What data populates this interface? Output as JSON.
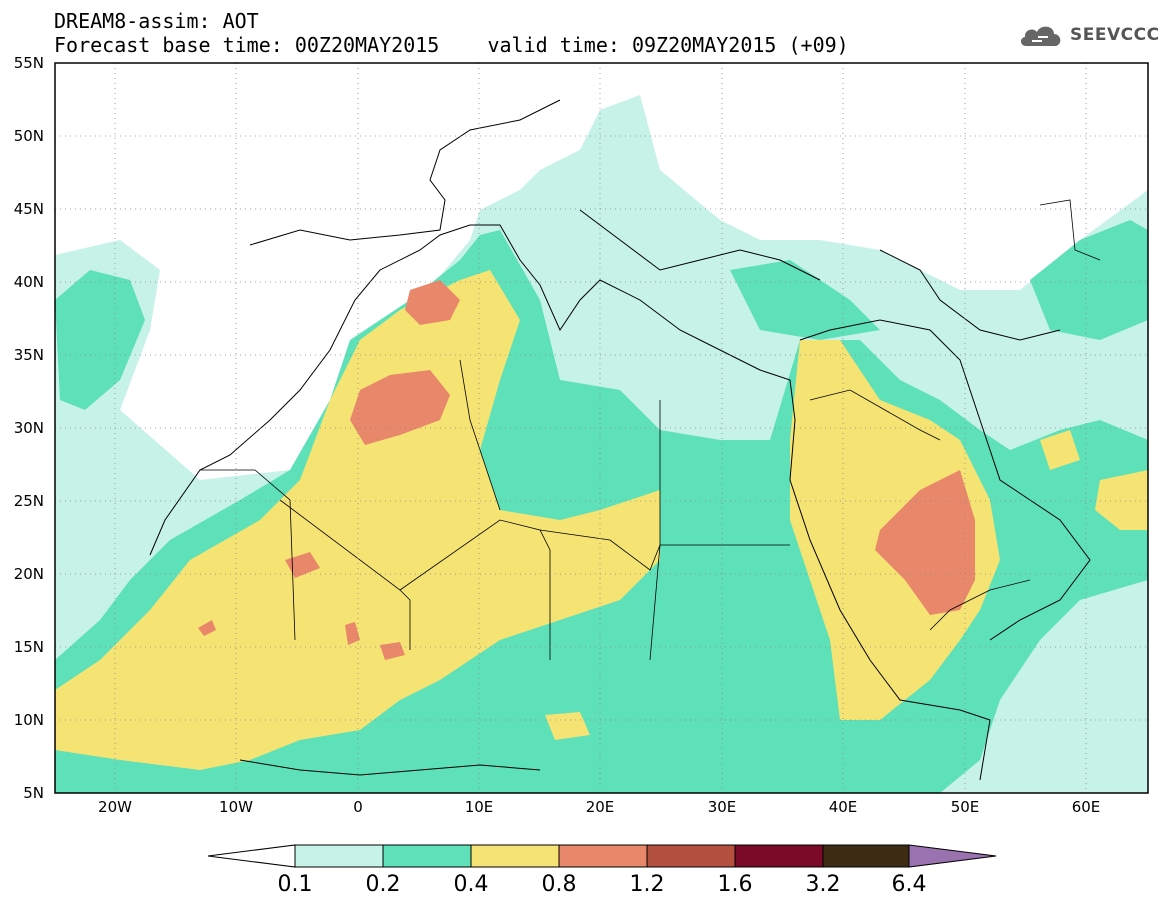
{
  "title": {
    "line1": "DREAM8-assim: AOT",
    "line2": "Forecast base time: 00Z20MAY2015    valid time: 09Z20MAY2015 (+09)"
  },
  "logo": {
    "text": "SEEVCCC",
    "icon": "cloud-icon"
  },
  "map": {
    "lat_labels": [
      "55N",
      "50N",
      "45N",
      "40N",
      "35N",
      "30N",
      "25N",
      "20N",
      "15N",
      "10N",
      "5N"
    ],
    "lon_labels": [
      "20W",
      "10W",
      "0",
      "10E",
      "20E",
      "30E",
      "40E",
      "50E",
      "60E"
    ],
    "extent": {
      "lon": [
        -25,
        65
      ],
      "lat": [
        5,
        55
      ]
    },
    "grid": true
  },
  "colorbar": {
    "levels": [
      "0.1",
      "0.2",
      "0.4",
      "0.8",
      "1.2",
      "1.6",
      "3.2",
      "6.4"
    ],
    "colors": [
      "#ffffff",
      "#c6f2e8",
      "#5ee0b8",
      "#f5e474",
      "#e8876a",
      "#b3503e",
      "#7a0a28",
      "#3d2b14",
      "#9a72b0"
    ]
  }
}
